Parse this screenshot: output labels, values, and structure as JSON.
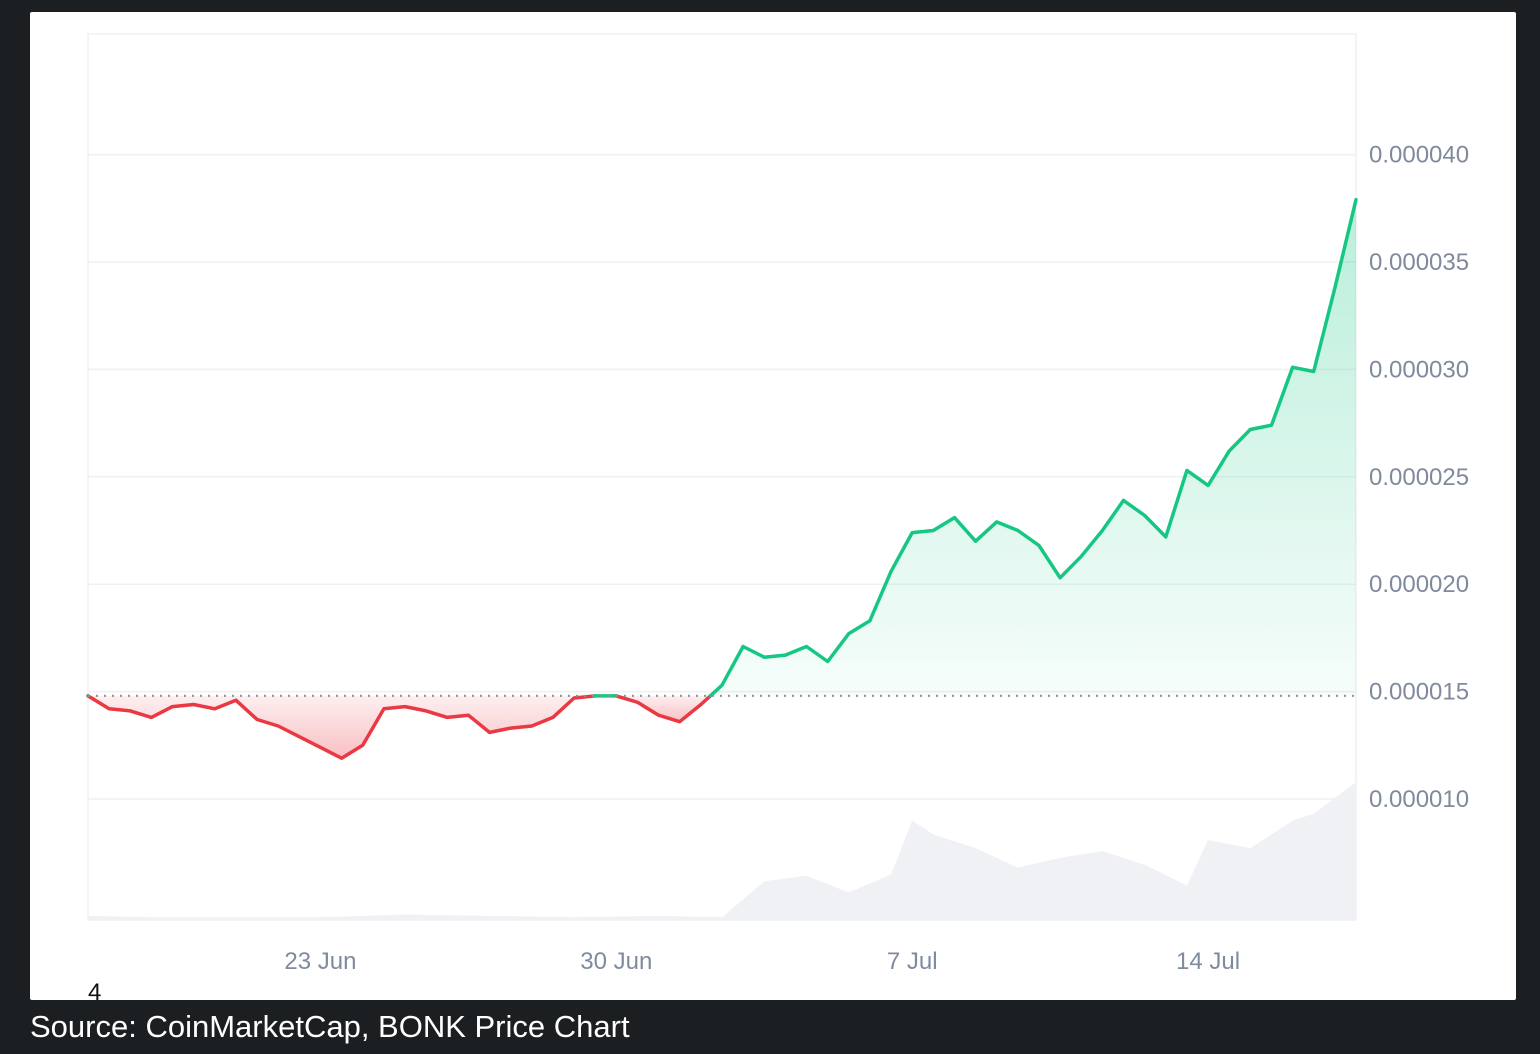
{
  "caption": "Source: CoinMarketCap, BONK Price Chart",
  "colors": {
    "up": "#16c784",
    "down": "#ea3943",
    "grid": "#eef0f3",
    "axis_text": "#808a9d",
    "volume": "#eff1f5",
    "baseline": "#8b919c"
  },
  "chart_data": {
    "type": "area",
    "title": "",
    "xlabel": "",
    "ylabel": "",
    "x_ticks": [
      "23 Jun",
      "30 Jun",
      "7 Jul",
      "14 Jul"
    ],
    "corner_label": "4",
    "y_ticks": [
      "0.000040",
      "0.000035",
      "0.000030",
      "0.000025",
      "0.000020",
      "0.000015",
      "0.000010"
    ],
    "ylim": [
      7.5e-06,
      4.6e-05
    ],
    "xlim": [
      "2024-06-17T12:00",
      "2024-07-17T12:00"
    ],
    "baseline": 1.48e-05,
    "grid": true,
    "legend": "none",
    "series": [
      {
        "type": "price",
        "x": [
          "2024-06-17T12:00",
          "2024-06-18T00:00",
          "2024-06-18T12:00",
          "2024-06-19T00:00",
          "2024-06-19T12:00",
          "2024-06-20T00:00",
          "2024-06-20T12:00",
          "2024-06-21T00:00",
          "2024-06-21T12:00",
          "2024-06-22T00:00",
          "2024-06-22T12:00",
          "2024-06-23T00:00",
          "2024-06-23T12:00",
          "2024-06-24T00:00",
          "2024-06-24T12:00",
          "2024-06-25T00:00",
          "2024-06-25T12:00",
          "2024-06-26T00:00",
          "2024-06-26T12:00",
          "2024-06-27T00:00",
          "2024-06-27T12:00",
          "2024-06-28T00:00",
          "2024-06-28T12:00",
          "2024-06-29T00:00",
          "2024-06-29T12:00",
          "2024-06-30T00:00",
          "2024-06-30T12:00",
          "2024-07-01T00:00",
          "2024-07-01T12:00",
          "2024-07-02T00:00",
          "2024-07-02T12:00",
          "2024-07-03T00:00",
          "2024-07-03T12:00",
          "2024-07-04T00:00",
          "2024-07-04T12:00",
          "2024-07-05T00:00",
          "2024-07-05T12:00",
          "2024-07-06T00:00",
          "2024-07-06T12:00",
          "2024-07-07T00:00",
          "2024-07-07T12:00",
          "2024-07-08T00:00",
          "2024-07-08T12:00",
          "2024-07-09T00:00",
          "2024-07-09T12:00",
          "2024-07-10T00:00",
          "2024-07-10T12:00",
          "2024-07-11T00:00",
          "2024-07-11T12:00",
          "2024-07-12T00:00",
          "2024-07-12T12:00",
          "2024-07-13T00:00",
          "2024-07-13T12:00",
          "2024-07-14T00:00",
          "2024-07-14T12:00",
          "2024-07-15T00:00",
          "2024-07-15T12:00",
          "2024-07-16T00:00",
          "2024-07-16T12:00",
          "2024-07-17T00:00",
          "2024-07-17T12:00"
        ],
        "y": [
          1.48e-05,
          1.42e-05,
          1.41e-05,
          1.38e-05,
          1.43e-05,
          1.44e-05,
          1.42e-05,
          1.46e-05,
          1.37e-05,
          1.34e-05,
          1.29e-05,
          1.24e-05,
          1.19e-05,
          1.25e-05,
          1.42e-05,
          1.43e-05,
          1.41e-05,
          1.38e-05,
          1.39e-05,
          1.31e-05,
          1.33e-05,
          1.34e-05,
          1.38e-05,
          1.47e-05,
          1.48e-05,
          1.48e-05,
          1.45e-05,
          1.39e-05,
          1.36e-05,
          1.44e-05,
          1.53e-05,
          1.71e-05,
          1.66e-05,
          1.67e-05,
          1.71e-05,
          1.64e-05,
          1.77e-05,
          1.83e-05,
          2.06e-05,
          2.24e-05,
          2.25e-05,
          2.31e-05,
          2.2e-05,
          2.29e-05,
          2.25e-05,
          2.18e-05,
          2.03e-05,
          2.13e-05,
          2.25e-05,
          2.39e-05,
          2.32e-05,
          2.22e-05,
          2.53e-05,
          2.46e-05,
          2.62e-05,
          2.72e-05,
          2.74e-05,
          3.01e-05,
          2.99e-05,
          3.38e-05,
          3.79e-05
        ]
      },
      {
        "type": "volume",
        "x": [
          "2024-06-17T12:00",
          "2024-06-19T00:00",
          "2024-06-21T00:00",
          "2024-06-23T00:00",
          "2024-06-25T00:00",
          "2024-06-27T00:00",
          "2024-06-29T00:00",
          "2024-07-01T00:00",
          "2024-07-02T12:00",
          "2024-07-03T12:00",
          "2024-07-04T12:00",
          "2024-07-05T12:00",
          "2024-07-06T12:00",
          "2024-07-07T00:00",
          "2024-07-07T12:00",
          "2024-07-08T12:00",
          "2024-07-09T12:00",
          "2024-07-10T12:00",
          "2024-07-11T12:00",
          "2024-07-12T12:00",
          "2024-07-13T12:00",
          "2024-07-14T00:00",
          "2024-07-15T00:00",
          "2024-07-16T00:00",
          "2024-07-16T12:00",
          "2024-07-17T12:00"
        ],
        "y": [
          0.03,
          0.02,
          0.02,
          0.02,
          0.04,
          0.03,
          0.02,
          0.03,
          0.02,
          0.28,
          0.32,
          0.2,
          0.33,
          0.72,
          0.62,
          0.52,
          0.38,
          0.45,
          0.5,
          0.4,
          0.25,
          0.58,
          0.52,
          0.72,
          0.77,
          1.0
        ]
      }
    ]
  }
}
